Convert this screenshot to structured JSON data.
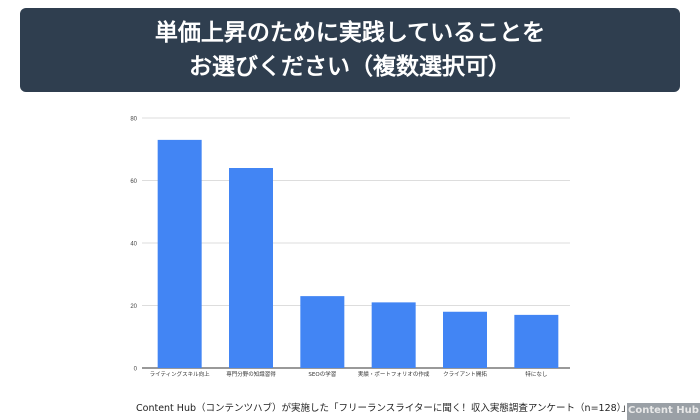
{
  "header": {
    "title_line1": "単価上昇のために実践していることを",
    "title_line2": "お選びください（複数選択可）"
  },
  "chart_data": {
    "type": "bar",
    "categories": [
      "ライティングスキル向上",
      "専門分野の知識習得",
      "SEOの学習",
      "実績・ポートフォリオの作成",
      "クライアント開拓",
      "特になし"
    ],
    "values": [
      73,
      64,
      23,
      21,
      18,
      17
    ],
    "ylim": [
      0,
      80
    ],
    "yticks": [
      0,
      20,
      40,
      60,
      80
    ],
    "grid": true,
    "bar_color": "#4285f4",
    "title": "",
    "xlabel": "",
    "ylabel": ""
  },
  "footer": {
    "source": "Content Hub（コンテンツハブ）が実施した「フリーランスライターに聞く！収入実態調査アンケート（n=128）」より",
    "logo": "Content Hub"
  }
}
